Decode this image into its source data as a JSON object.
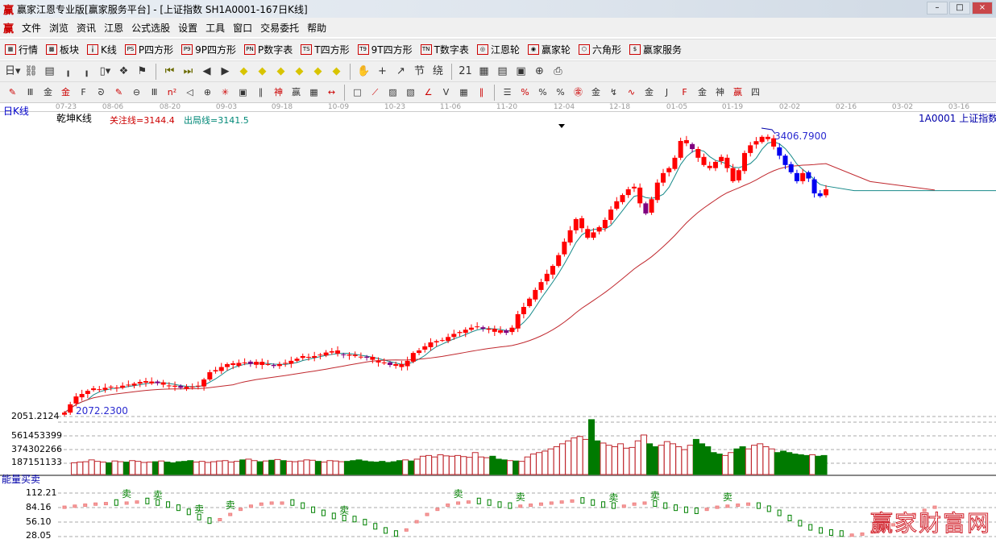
{
  "window": {
    "title": "赢家江恩专业版[赢家服务平台] - [上证指数  SH1A0001-167日K线]",
    "logo": "赢",
    "controls": [
      "–",
      "□",
      "×"
    ]
  },
  "menu": [
    "文件",
    "浏览",
    "资讯",
    "江恩",
    "公式选股",
    "设置",
    "工具",
    "窗口",
    "交易委托",
    "帮助"
  ],
  "toolbar1": [
    {
      "icon": "table-icon",
      "glyph": "▦",
      "label": "行情"
    },
    {
      "icon": "blocks-icon",
      "glyph": "▩",
      "label": "板块"
    },
    {
      "icon": "kline-icon",
      "glyph": "╽",
      "label": "K线"
    },
    {
      "icon": "ps-icon",
      "glyph": "PS",
      "label": "P四方形"
    },
    {
      "icon": "p9-icon",
      "glyph": "P9",
      "label": "9P四方形"
    },
    {
      "icon": "pn-icon",
      "glyph": "PN",
      "label": "P数字表"
    },
    {
      "icon": "ts-icon",
      "glyph": "TS",
      "label": "T四方形"
    },
    {
      "icon": "t9-icon",
      "glyph": "T9",
      "label": "9T四方形"
    },
    {
      "icon": "tn-icon",
      "glyph": "TN",
      "label": "T数字表"
    },
    {
      "icon": "gann-wheel-icon",
      "glyph": "◎",
      "label": "江恩轮"
    },
    {
      "icon": "win-wheel-icon",
      "glyph": "◉",
      "label": "赢家轮"
    },
    {
      "icon": "hexagon-icon",
      "glyph": "⬡",
      "label": "六角形"
    },
    {
      "icon": "dollar-icon",
      "glyph": "$",
      "label": "赢家服务"
    }
  ],
  "toolbar2": [
    {
      "icon": "period-day-icon",
      "glyph": "日▾"
    },
    {
      "icon": "link-icon",
      "glyph": "⛓"
    },
    {
      "icon": "note-icon",
      "glyph": "▤"
    },
    {
      "icon": "chart3-icon",
      "glyph": "╻"
    },
    {
      "icon": "chart9-icon",
      "glyph": "╻"
    },
    {
      "icon": "candle-type-icon",
      "glyph": "▯▾"
    },
    {
      "icon": "pattern-icon",
      "glyph": "❖"
    },
    {
      "icon": "flag-icon",
      "glyph": "⚑"
    },
    {
      "sep": true
    },
    {
      "icon": "first-icon",
      "glyph": "⏮"
    },
    {
      "icon": "last-icon",
      "glyph": "⏭"
    },
    {
      "icon": "left-icon",
      "glyph": "◀"
    },
    {
      "icon": "right-icon",
      "glyph": "▶"
    },
    {
      "icon": "shift-left-icon",
      "glyph": "◆"
    },
    {
      "icon": "shift-right-icon",
      "glyph": "◆"
    },
    {
      "icon": "expand-icon",
      "glyph": "◆"
    },
    {
      "icon": "shrink-icon",
      "glyph": "◆"
    },
    {
      "icon": "zoom-in-icon",
      "glyph": "◆"
    },
    {
      "icon": "zoom-out-icon",
      "glyph": "◆"
    },
    {
      "sep": true
    },
    {
      "icon": "hand-icon",
      "glyph": "✋"
    },
    {
      "icon": "crosshair-icon",
      "glyph": "+"
    },
    {
      "icon": "draw-line-icon",
      "glyph": "↗"
    },
    {
      "icon": "section-icon",
      "glyph": "节"
    },
    {
      "icon": "wave-icon",
      "glyph": "绕"
    },
    {
      "sep": true
    },
    {
      "icon": "calendar-icon",
      "glyph": "21"
    },
    {
      "icon": "calculator-icon",
      "glyph": "▦"
    },
    {
      "icon": "doc-icon",
      "glyph": "▤"
    },
    {
      "icon": "save-icon",
      "glyph": "▣"
    },
    {
      "icon": "network-icon",
      "glyph": "⊕"
    },
    {
      "icon": "print-icon",
      "glyph": "⎙"
    }
  ],
  "toolbar3": [
    "pen-icon",
    "gann-lines-icon",
    "gold-icon",
    "gold2-icon",
    "fib-icon",
    "spiral-icon",
    "pen2-icon",
    "circle-icon",
    "grid-lines-icon",
    "square-icon",
    "triangle-icon",
    "target-icon",
    "radial-icon",
    "box-icon",
    "angle-icon",
    "shen-icon",
    "win-icon",
    "ruler-icon",
    "span-icon",
    "sep",
    "rect-icon",
    "fan-icon",
    "fan-box-icon",
    "fan-box2-icon",
    "angle-fan-icon",
    "v-icon",
    "grid-icon",
    "parallel-icon",
    "sep",
    "table2-icon",
    "percent-slash-icon",
    "percent-icon",
    "percent-lines-icon",
    "gold-circle-icon",
    "gold-lines-icon",
    "arrow-icon",
    "wave2-icon",
    "gold3-icon",
    "j-angle-icon",
    "f-angle-icon",
    "gold-angle-icon",
    "shen-angle-icon",
    "win-angle-icon",
    "four-angle-icon"
  ],
  "toolbar3_glyphs": [
    "✎",
    "Ⅲ",
    "金",
    "金",
    "F",
    "ᘐ",
    "✎",
    "⊖",
    "Ⅲ",
    "n²",
    "◁",
    "⊕",
    "✳",
    "▣",
    "∥",
    "神",
    "赢",
    "▦",
    "↔",
    "",
    "□",
    "⟋",
    "▨",
    "▧",
    "∠",
    "V",
    "▦",
    "∥",
    "",
    "☰",
    "%",
    "%",
    "%",
    "㊎",
    "金",
    "↯",
    "∿",
    "金",
    "J",
    "F",
    "金",
    "神",
    "赢",
    "四"
  ],
  "date_ticks": [
    "07-23",
    "08-06",
    "08-20",
    "09-03",
    "09-18",
    "10-09",
    "10-23",
    "11-06",
    "11-20",
    "12-04",
    "12-18",
    "01-05",
    "01-19",
    "02-02",
    "02-16",
    "03-02",
    "03-16"
  ],
  "main_panel": {
    "period": "日K线",
    "indicator_name": "乾坤K线",
    "focus_line": "关注线=3144.4",
    "exit_line": "出局线=3141.5",
    "symbol": "1A0001  上证指数",
    "high_label": "3406.7900",
    "low_label": "2072.2300",
    "price_axis": "2051.2124",
    "focus_value": 3144.4,
    "exit_value": 3141.5
  },
  "volume_panel": {
    "axis": [
      "561453399",
      "374302266",
      "187151133"
    ]
  },
  "energy_panel": {
    "title": "能量买卖",
    "axis": [
      "112.21",
      "84.16",
      "56.10",
      "28.05"
    ],
    "sell_label": "卖",
    "values": [
      84,
      86,
      88,
      90,
      91,
      90,
      92,
      94,
      93,
      90,
      86,
      80,
      72,
      62,
      55,
      60,
      70,
      80,
      86,
      90,
      92,
      92,
      90,
      84,
      76,
      70,
      64,
      60,
      58,
      52,
      44,
      36,
      30,
      40,
      56,
      70,
      80,
      88,
      92,
      94,
      93,
      90,
      86,
      84,
      86,
      88,
      90,
      92,
      94,
      96,
      94,
      90,
      86,
      84,
      86,
      90,
      92,
      88,
      84,
      80,
      76,
      74,
      80,
      84,
      86,
      88,
      90,
      84,
      78,
      70,
      60,
      50,
      42,
      36,
      32,
      30,
      30,
      32,
      36,
      42,
      50,
      60,
      70,
      78,
      84
    ],
    "sell_at": [
      6,
      9,
      13,
      16,
      27,
      38,
      44,
      53,
      57,
      64
    ]
  },
  "chart_data": {
    "type": "candlestick",
    "price_range": [
      2051.2124,
      3406.79
    ],
    "closes": [
      2070,
      2110,
      2148,
      2160,
      2175,
      2187,
      2180,
      2190,
      2195,
      2190,
      2200,
      2205,
      2210,
      2218,
      2215,
      2220,
      2212,
      2205,
      2200,
      2195,
      2190,
      2195,
      2195,
      2200,
      2230,
      2265,
      2275,
      2290,
      2304,
      2300,
      2310,
      2312,
      2305,
      2315,
      2300,
      2304,
      2295,
      2304,
      2310,
      2320,
      2330,
      2343,
      2335,
      2343,
      2350,
      2360,
      2366,
      2355,
      2350,
      2345,
      2343,
      2340,
      2335,
      2325,
      2312,
      2308,
      2300,
      2304,
      2290,
      2320,
      2358,
      2370,
      2390,
      2409,
      2415,
      2420,
      2435,
      2450,
      2459,
      2470,
      2480,
      2486,
      2475,
      2470,
      2460,
      2467,
      2455,
      2480,
      2545,
      2580,
      2620,
      2662,
      2700,
      2740,
      2778,
      2830,
      2895,
      2950,
      3004,
      2960,
      2914,
      2940,
      2965,
      3000,
      3050,
      3090,
      3120,
      3148,
      3160,
      3080,
      3031,
      3100,
      3180,
      3226,
      3250,
      3300,
      3381,
      3370,
      3342,
      3300,
      3265,
      3250,
      3280,
      3304,
      3250,
      3187,
      3240,
      3323,
      3360,
      3380,
      3401,
      3390,
      3354,
      3310,
      3265,
      3230,
      3187,
      3226,
      3200,
      3128,
      3115,
      3148
    ],
    "volumes": [
      160,
      170,
      175,
      200,
      180,
      170,
      160,
      185,
      175,
      170,
      190,
      180,
      165,
      170,
      175,
      185,
      170,
      160,
      175,
      180,
      190,
      170,
      180,
      165,
      175,
      185,
      190,
      170,
      180,
      200,
      210,
      190,
      175,
      185,
      195,
      205,
      190,
      180,
      175,
      185,
      200,
      195,
      180,
      170,
      190,
      185,
      175,
      180,
      190,
      200,
      185,
      175,
      170,
      180,
      165,
      175,
      190,
      200,
      185,
      210,
      250,
      260,
      240,
      270,
      255,
      250,
      260,
      245,
      235,
      300,
      240,
      230,
      250,
      210,
      200,
      190,
      185,
      180,
      240,
      280,
      300,
      320,
      350,
      380,
      420,
      460,
      500,
      520,
      480,
      750,
      460,
      430,
      400,
      380,
      420,
      360,
      370,
      460,
      540,
      420,
      380,
      400,
      450,
      420,
      380,
      340,
      400,
      480,
      420,
      380,
      300,
      280,
      260,
      300,
      350,
      380,
      350,
      400,
      420,
      380,
      350,
      300,
      320,
      300,
      280,
      270,
      260,
      270,
      250,
      260,
      230,
      200
    ],
    "volume_axis_max": 748604532
  }
}
